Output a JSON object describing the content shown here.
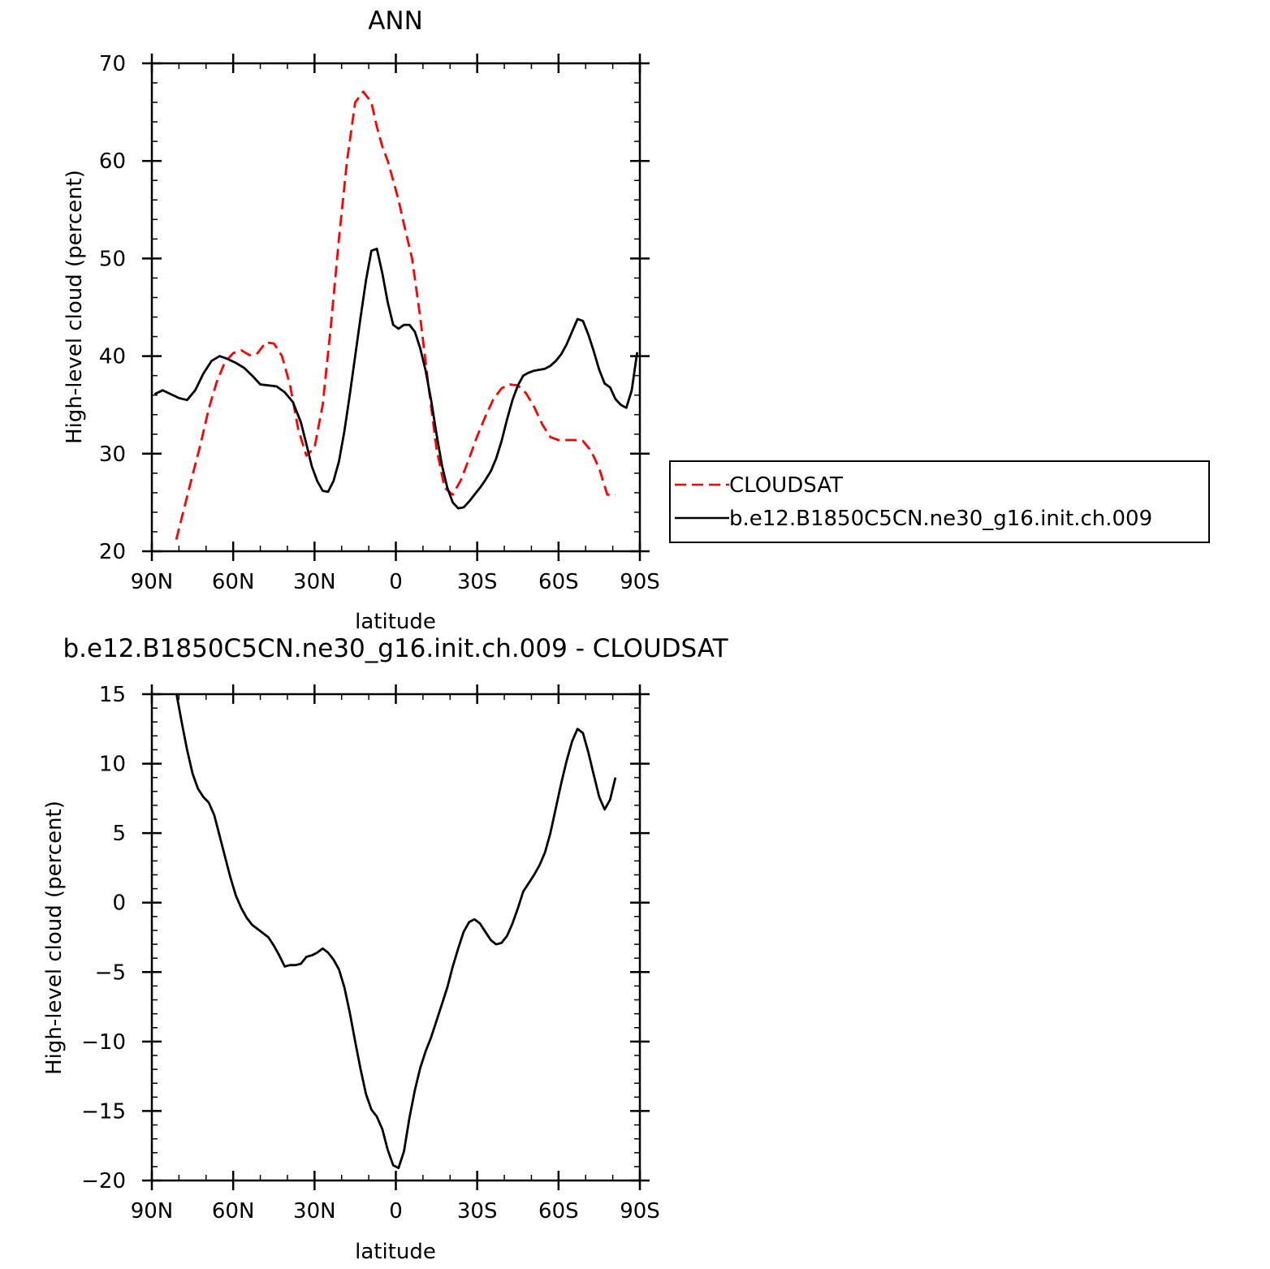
{
  "chart_data": [
    {
      "type": "line",
      "title": "ANN",
      "xlabel": "latitude",
      "ylabel": "High-level cloud (percent)",
      "xlim": [
        -90,
        90
      ],
      "ylim": [
        20,
        70
      ],
      "x_ticks": [
        -90,
        -60,
        -30,
        0,
        30,
        60,
        90
      ],
      "x_tick_labels": [
        "90N",
        "60N",
        "30N",
        "0",
        "30S",
        "60S",
        "90S"
      ],
      "y_ticks": [
        20,
        30,
        40,
        50,
        60,
        70
      ],
      "y_tick_labels": [
        "20",
        "30",
        "40",
        "50",
        "60",
        "70"
      ],
      "legend_position": "right",
      "series": [
        {
          "name": "CLOUDSAT",
          "color": "#ff0000",
          "dash": "dashed",
          "x": [
            -81,
            -78,
            -75,
            -72,
            -69,
            -66,
            -63,
            -60,
            -57,
            -54,
            -51,
            -48,
            -45,
            -42,
            -39,
            -36,
            -33,
            -30,
            -27,
            -24,
            -21,
            -18,
            -15,
            -12,
            -9,
            -7,
            -5,
            -3,
            -1,
            1,
            3,
            6,
            9,
            12,
            15,
            18,
            21,
            24,
            27,
            30,
            33,
            36,
            39,
            42,
            45,
            48,
            51,
            54,
            57,
            60,
            63,
            66,
            69,
            72,
            75,
            78,
            81
          ],
          "values": [
            21.2,
            24.5,
            27.8,
            31,
            34.6,
            37.4,
            39.4,
            40.3,
            40.6,
            40.1,
            40.3,
            41.4,
            41.3,
            40,
            37,
            32.5,
            29.8,
            30.6,
            35,
            43,
            52,
            60,
            66,
            67.1,
            66,
            63.5,
            61.5,
            60,
            58,
            56,
            53.5,
            50,
            44,
            37,
            30.5,
            26.5,
            25.8,
            27.3,
            29.5,
            31.8,
            33.8,
            35.6,
            36.7,
            37.1,
            37,
            36.2,
            34.8,
            33,
            31.7,
            31.4,
            31.4,
            31.4,
            31.3,
            30.3,
            28.5,
            25.8,
            25.8
          ]
        },
        {
          "name": "b.e12.B1850C5CN.ne30_g16.init.ch.009",
          "color": "#000000",
          "dash": "solid",
          "x": [
            -89,
            -86,
            -83,
            -80,
            -77,
            -74,
            -71,
            -68,
            -65,
            -62,
            -59,
            -56,
            -53,
            -50,
            -47,
            -44,
            -41,
            -38,
            -35,
            -33,
            -31,
            -29,
            -27,
            -25,
            -23,
            -21,
            -19,
            -17,
            -15,
            -13,
            -11,
            -9,
            -7,
            -5,
            -3,
            -1,
            1,
            3,
            5,
            7,
            9,
            11,
            13,
            15,
            17,
            19,
            21,
            23,
            25,
            27,
            29,
            31,
            33,
            35,
            37,
            39,
            41,
            43,
            45,
            47,
            49,
            51,
            53,
            55,
            57,
            59,
            61,
            63,
            65,
            67,
            69,
            71,
            73,
            75,
            77,
            79,
            81,
            83,
            85,
            87,
            89
          ],
          "values": [
            36.1,
            36.5,
            36.1,
            35.7,
            35.5,
            36.5,
            38.2,
            39.5,
            40,
            39.7,
            39.3,
            38.8,
            38,
            37.1,
            37,
            36.9,
            36.3,
            35.3,
            33.2,
            31,
            28.7,
            27.2,
            26.2,
            26.1,
            27.2,
            29.2,
            32.3,
            36,
            40,
            44,
            47.8,
            50.8,
            51,
            48.5,
            45.5,
            43.2,
            42.8,
            43.2,
            43.2,
            42.5,
            40.8,
            38.5,
            35.5,
            32,
            28.8,
            26.5,
            25,
            24.4,
            24.5,
            25.1,
            25.8,
            26.5,
            27.3,
            28.2,
            29.5,
            31.3,
            33.5,
            35.5,
            37,
            38,
            38.3,
            38.5,
            38.6,
            38.7,
            39,
            39.5,
            40.2,
            41.2,
            42.5,
            43.8,
            43.6,
            42.2,
            40.5,
            38.6,
            37.2,
            36.8,
            35.6,
            35,
            34.7,
            36.5,
            40.4
          ]
        }
      ]
    },
    {
      "type": "line",
      "title": "b.e12.B1850C5CN.ne30_g16.init.ch.009 - CLOUDSAT",
      "xlabel": "latitude",
      "ylabel": "High-level cloud (percent)",
      "xlim": [
        -90,
        90
      ],
      "ylim": [
        -20,
        15
      ],
      "x_ticks": [
        -90,
        -60,
        -30,
        0,
        30,
        60,
        90
      ],
      "x_tick_labels": [
        "90N",
        "60N",
        "30N",
        "0",
        "30S",
        "60S",
        "90S"
      ],
      "y_ticks": [
        -20,
        -15,
        -10,
        -5,
        0,
        5,
        10,
        15
      ],
      "y_tick_labels": [
        "−20",
        "−15",
        "−10",
        "−5",
        "0",
        "5",
        "10",
        "15"
      ],
      "series": [
        {
          "color": "#000000",
          "dash": "solid",
          "x": [
            -81,
            -79,
            -77,
            -75,
            -73,
            -71,
            -69,
            -67,
            -65,
            -63,
            -61,
            -59,
            -57,
            -55,
            -53,
            -51,
            -49,
            -47,
            -45,
            -43,
            -41,
            -39,
            -37,
            -35,
            -33,
            -31,
            -29,
            -27,
            -25,
            -23,
            -21,
            -19,
            -17,
            -15,
            -13,
            -11,
            -9,
            -7,
            -5,
            -3,
            -1,
            1,
            3,
            5,
            7,
            9,
            11,
            13,
            15,
            17,
            19,
            21,
            23,
            25,
            27,
            29,
            31,
            33,
            35,
            37,
            39,
            41,
            43,
            45,
            47,
            49,
            51,
            53,
            55,
            57,
            59,
            61,
            63,
            65,
            67,
            69,
            71,
            73,
            75,
            77,
            79,
            81
          ],
          "values": [
            15.1,
            13,
            11,
            9.3,
            8.2,
            7.6,
            7.2,
            6.3,
            4.8,
            3.3,
            1.8,
            0.5,
            -0.4,
            -1.1,
            -1.6,
            -1.9,
            -2.2,
            -2.5,
            -3.1,
            -3.8,
            -4.6,
            -4.5,
            -4.5,
            -4.4,
            -3.9,
            -3.8,
            -3.6,
            -3.3,
            -3.6,
            -4.1,
            -4.8,
            -6.1,
            -7.9,
            -10,
            -12,
            -13.8,
            -14.9,
            -15.4,
            -16.3,
            -17.8,
            -18.9,
            -19.1,
            -17.9,
            -15.5,
            -13.5,
            -11.9,
            -10.7,
            -9.7,
            -8.5,
            -7.3,
            -6.1,
            -4.6,
            -3.3,
            -2.1,
            -1.4,
            -1.2,
            -1.5,
            -2.1,
            -2.7,
            -3,
            -2.9,
            -2.4,
            -1.5,
            -0.4,
            0.8,
            1.4,
            2,
            2.7,
            3.6,
            5,
            6.8,
            8.6,
            10.2,
            11.6,
            12.5,
            12.2,
            10.8,
            9.2,
            7.6,
            6.7,
            7.4,
            9
          ]
        }
      ]
    }
  ]
}
